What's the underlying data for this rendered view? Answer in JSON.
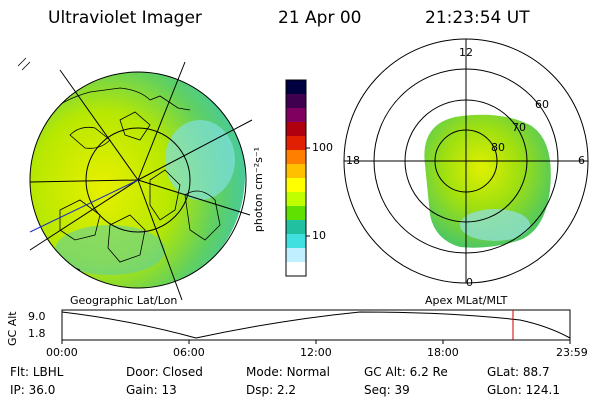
{
  "header": {
    "instrument": "Ultraviolet Imager",
    "date": "21 Apr 00",
    "time": "21:23:54 UT"
  },
  "geo_panel": {
    "caption": "Geographic Lat/Lon"
  },
  "apex_panel": {
    "caption": "Apex MLat/MLT",
    "mlt_labels": {
      "top": "12",
      "left": "18",
      "right": "6",
      "bottom": "0"
    },
    "lat_labels": [
      "60",
      "70",
      "80"
    ]
  },
  "colorbar": {
    "unit_label": "photon cm⁻²s⁻¹",
    "ticks": [
      "100",
      "10"
    ],
    "colors": [
      "#000040",
      "#400050",
      "#800060",
      "#b00010",
      "#e02000",
      "#ff8000",
      "#ffc000",
      "#ffff00",
      "#c0ff00",
      "#60e000",
      "#20c0a0",
      "#40e0e0",
      "#c0f0ff",
      "#ffffff"
    ]
  },
  "timeline": {
    "ylabel": "GC Alt",
    "y_ticks": [
      "9.0",
      "1.8"
    ],
    "x_ticks": [
      "00:00",
      "06:00",
      "12:00",
      "18:00",
      "23:59"
    ],
    "current_marker_color": "#cc0000"
  },
  "info": {
    "row1": [
      {
        "k": "Flt:",
        "v": "LBHL"
      },
      {
        "k": "Door:",
        "v": "Closed"
      },
      {
        "k": "Mode:",
        "v": "Normal"
      },
      {
        "k": "GC Alt:",
        "v": "6.2 Re"
      },
      {
        "k": "GLat:",
        "v": "88.7"
      }
    ],
    "row2": [
      {
        "k": "IP:",
        "v": "36.0"
      },
      {
        "k": "Gain:",
        "v": "13"
      },
      {
        "k": "Dsp:",
        "v": "2.2"
      },
      {
        "k": "Seq:",
        "v": "39"
      },
      {
        "k": "GLon:",
        "v": "124.1"
      }
    ]
  }
}
